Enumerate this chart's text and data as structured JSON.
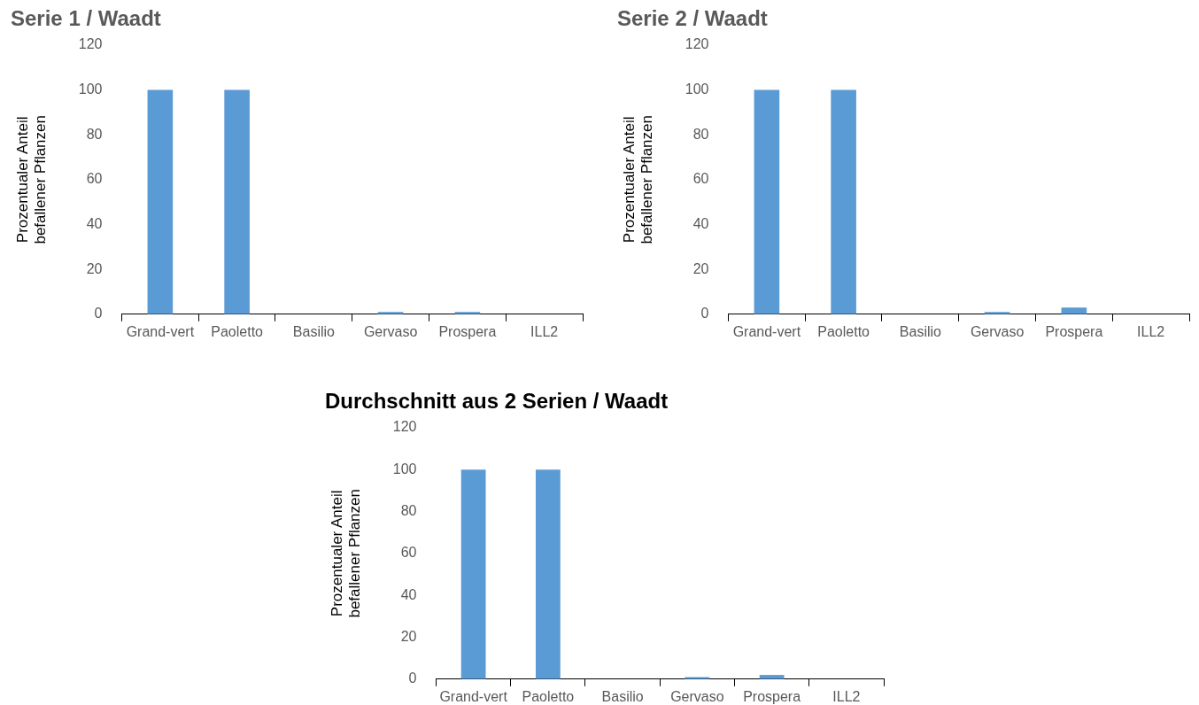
{
  "chart_data": [
    {
      "type": "bar",
      "title": "Serie 1 / Waadt",
      "ylabel": "Prozentualer Anteil befallener Pflanzen",
      "categories": [
        "Grand-vert",
        "Paoletto",
        "Basilio",
        "Gervaso",
        "Prospera",
        "ILL2"
      ],
      "values": [
        100,
        100,
        0,
        1,
        1,
        0
      ],
      "color": "#5b9bd5",
      "ylim": [
        0,
        120
      ],
      "yticks": [
        0,
        20,
        40,
        60,
        80,
        100,
        120
      ],
      "grid": false,
      "legend": false
    },
    {
      "type": "bar",
      "title": "Serie 2 / Waadt",
      "ylabel": "Prozentualer Anteil befallener Pflanzen",
      "categories": [
        "Grand-vert",
        "Paoletto",
        "Basilio",
        "Gervaso",
        "Prospera",
        "ILL2"
      ],
      "values": [
        100,
        100,
        0,
        1,
        3,
        0
      ],
      "color": "#5b9bd5",
      "ylim": [
        0,
        120
      ],
      "yticks": [
        0,
        20,
        40,
        60,
        80,
        100,
        120
      ],
      "grid": false,
      "legend": false
    },
    {
      "type": "bar",
      "title": "Durchschnitt aus 2 Serien / Waadt",
      "ylabel": "Prozentualer Anteil befallener Pflanzen",
      "categories": [
        "Grand-vert",
        "Paoletto",
        "Basilio",
        "Gervaso",
        "Prospera",
        "ILL2"
      ],
      "values": [
        100,
        100,
        0,
        1,
        2,
        0
      ],
      "color": "#5b9bd5",
      "ylim": [
        0,
        120
      ],
      "yticks": [
        0,
        20,
        40,
        60,
        80,
        100,
        120
      ],
      "grid": false,
      "legend": false
    }
  ]
}
